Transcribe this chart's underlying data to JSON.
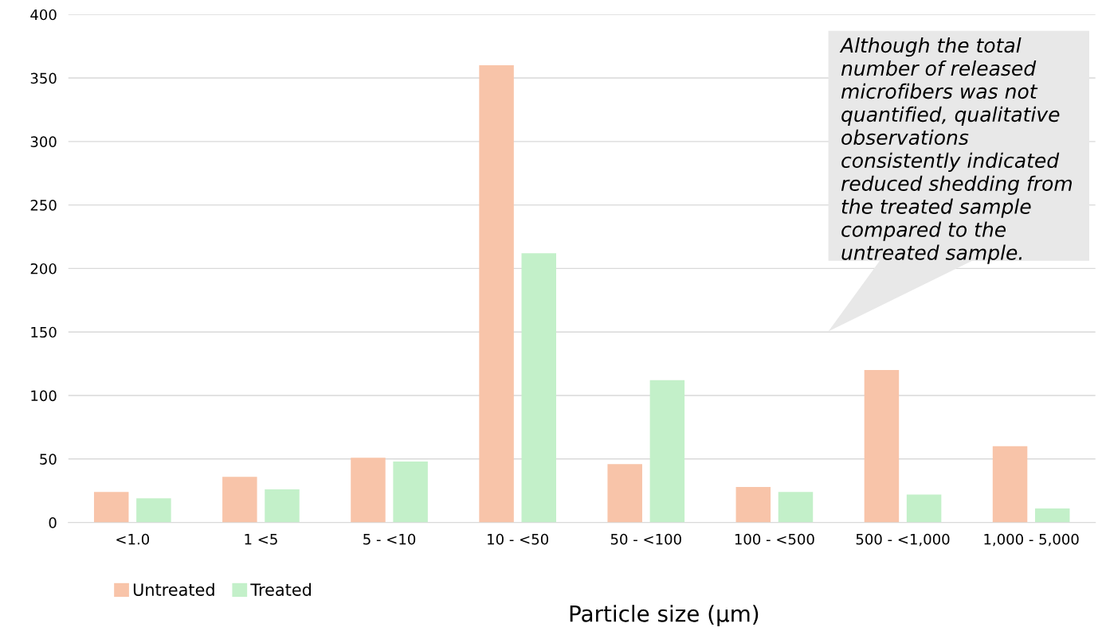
{
  "chart_data": {
    "type": "bar",
    "xlabel": "Particle size (µm)",
    "categories": [
      "<1.0",
      "1 <5",
      "5 - <10",
      "10 - <50",
      "50 - <100",
      "100 - <500",
      "500 - <1,000",
      "1,000 - 5,000"
    ],
    "series": [
      {
        "name": "Untreated",
        "color": "#f8c4a9",
        "values": [
          24,
          36,
          51,
          360,
          46,
          28,
          120,
          60
        ]
      },
      {
        "name": "Treated",
        "color": "#c3f0c9",
        "values": [
          19,
          26,
          48,
          212,
          112,
          24,
          22,
          11
        ]
      }
    ],
    "ylim": [
      0,
      400
    ],
    "yticks": [
      0,
      50,
      100,
      150,
      200,
      250,
      300,
      350,
      400
    ],
    "grid": "y",
    "legend": "bottom left",
    "annotations": [
      "Although the total number of released microfibers was not quantified, qualitative observations consistently indicated reduced shedding from the treated sample compared to the untreated sample."
    ]
  }
}
